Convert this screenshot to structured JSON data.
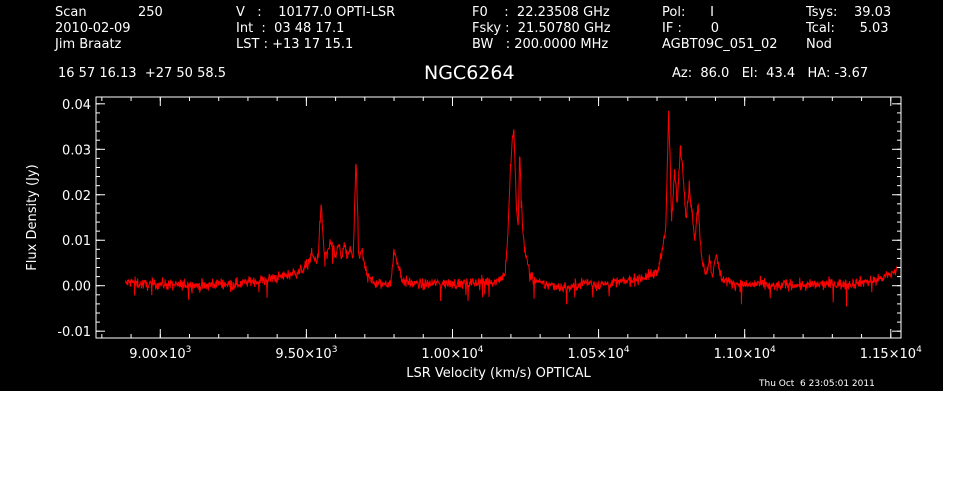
{
  "header": {
    "scan_label": "Scan",
    "scan_number": "250",
    "date": "2010-02-09",
    "observer": "Jim Braatz",
    "v": "V   :    10177.0 OPTI-LSR",
    "int": "Int  :  03 48 17.1",
    "lst": "LST : +13 17 15.1",
    "f0": "F0    :  22.23508 GHz",
    "fsky": "Fsky :  21.50780 GHz",
    "bw": "BW   : 200.0000 MHz",
    "pol": "Pol:      I",
    "if": "IF :       0",
    "project": "AGBT09C_051_02",
    "tsys": "Tsys:    39.03",
    "tcal": "Tcal:      5.03",
    "proc": "Nod",
    "coords": "16 57 16.13  +27 50 58.5",
    "source": "NGC6264",
    "pointing": "Az:  86.0   El:  43.4   HA: -3.67"
  },
  "footer": {
    "timestamp": "Thu Oct  6 23:05:01 2011"
  },
  "colors": {
    "background": "#000000",
    "axes": "#ffffff",
    "trace": "#ff0000"
  },
  "chart_data": {
    "type": "line",
    "title": "NGC6264",
    "xlabel": "LSR Velocity (km/s) OPTICAL",
    "ylabel": "Flux Density (Jy)",
    "xlim": [
      8780,
      11535
    ],
    "ylim": [
      -0.0115,
      0.0415
    ],
    "x_ticks": [
      9000,
      9500,
      10000,
      10500,
      11000,
      11500
    ],
    "x_tick_labels": [
      {
        "mant": "9.00",
        "exp": "3"
      },
      {
        "mant": "9.50",
        "exp": "3"
      },
      {
        "mant": "1.00",
        "exp": "4"
      },
      {
        "mant": "1.05",
        "exp": "4"
      },
      {
        "mant": "1.10",
        "exp": "4"
      },
      {
        "mant": "1.15",
        "exp": "4"
      }
    ],
    "y_ticks": [
      -0.01,
      0.0,
      0.01,
      0.02,
      0.03,
      0.04
    ],
    "y_tick_labels": [
      "-0.01",
      "0.00",
      "0.01",
      "0.02",
      "0.03",
      "0.04"
    ],
    "grid": false,
    "legend": "none",
    "series": [
      {
        "x": [
          8880,
          8900,
          8950,
          9000,
          9050,
          9100,
          9150,
          9200,
          9250,
          9300,
          9350,
          9400,
          9450,
          9480,
          9500,
          9520,
          9530,
          9540,
          9550,
          9560,
          9570,
          9580,
          9590,
          9600,
          9610,
          9620,
          9630,
          9640,
          9650,
          9660,
          9670,
          9680,
          9690,
          9700,
          9710,
          9730,
          9760,
          9790,
          9800,
          9830,
          9870,
          9900,
          9950,
          10000,
          10050,
          10100,
          10150,
          10180,
          10190,
          10200,
          10205,
          10210,
          10215,
          10220,
          10225,
          10230,
          10240,
          10250,
          10260,
          10270,
          10300,
          10350,
          10400,
          10450,
          10500,
          10550,
          10600,
          10650,
          10700,
          10710,
          10720,
          10730,
          10740,
          10750,
          10760,
          10770,
          10780,
          10790,
          10800,
          10810,
          10820,
          10830,
          10840,
          10850,
          10860,
          10870,
          10880,
          10890,
          10900,
          10920,
          10950,
          11000,
          11050,
          11100,
          11150,
          11200,
          11250,
          11300,
          11350,
          11400,
          11450,
          11500,
          11520
        ],
        "y": [
          0.0005,
          0.0008,
          0.0002,
          0.0004,
          0.0001,
          0.0003,
          -0.0002,
          0.0006,
          0.0003,
          0.0008,
          0.0012,
          0.0018,
          0.0026,
          0.0032,
          0.0045,
          0.0072,
          0.0055,
          0.006,
          0.018,
          0.008,
          0.0064,
          0.0093,
          0.0085,
          0.006,
          0.0098,
          0.0055,
          0.0092,
          0.006,
          0.0082,
          0.006,
          0.028,
          0.0055,
          0.0078,
          0.004,
          0.003,
          0.0005,
          0.0003,
          0.0008,
          0.0078,
          0.001,
          0.0004,
          0.0002,
          0.0006,
          0.0004,
          0.0005,
          0.0008,
          0.001,
          0.0025,
          0.012,
          0.028,
          0.032,
          0.035,
          0.024,
          0.016,
          0.013,
          0.03,
          0.012,
          0.007,
          0.004,
          0.0018,
          0.0004,
          0.0,
          -0.0005,
          0.0008,
          0.0002,
          0.0006,
          0.001,
          0.0018,
          0.0028,
          0.0055,
          0.009,
          0.012,
          0.039,
          0.014,
          0.025,
          0.018,
          0.031,
          0.024,
          0.015,
          0.022,
          0.016,
          0.01,
          0.018,
          0.008,
          0.004,
          0.003,
          0.006,
          0.002,
          0.007,
          0.0018,
          0.0006,
          0.0002,
          0.0004,
          -0.0002,
          0.0003,
          0.0,
          0.0002,
          0.0004,
          0.0003,
          0.0008,
          0.0012,
          0.0025,
          0.0035
        ]
      }
    ]
  }
}
